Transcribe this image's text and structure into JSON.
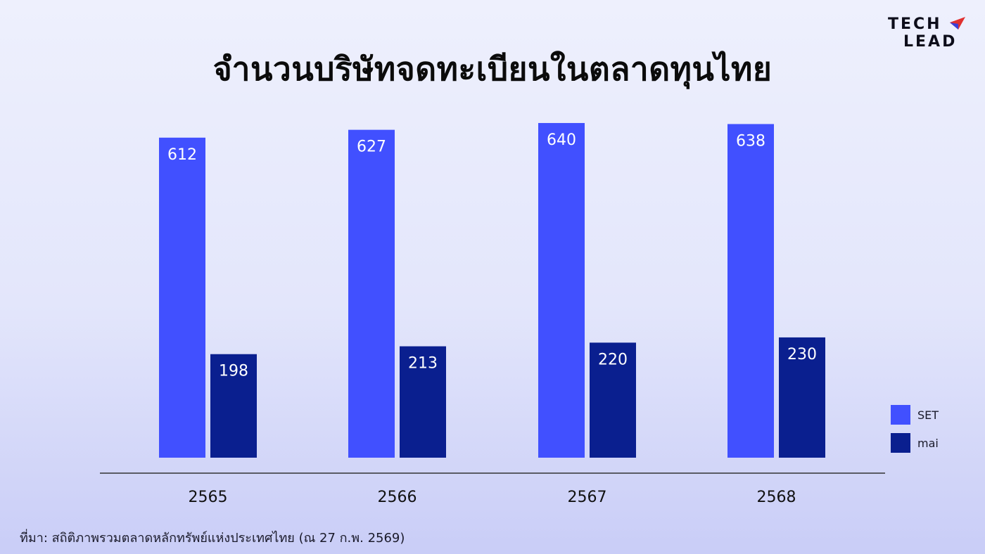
{
  "title": "จำนวนบริษัทจดทะเบียนในตลาดทุนไทย",
  "logo": {
    "line1": "TECH",
    "line2": "LEAD"
  },
  "source": "ที่มา: สถิติภาพรวมตลาดหลักทรัพย์แห่งประเทศไทย (ณ 27 ก.พ. 2569)",
  "colors": {
    "SET": "#4150ff",
    "mai": "#0a1f8f",
    "axis": "#333333"
  },
  "chart_data": {
    "type": "bar",
    "title": "จำนวนบริษัทจดทะเบียนในตลาดทุนไทย",
    "categories": [
      "2565",
      "2566",
      "2567",
      "2568"
    ],
    "series": [
      {
        "name": "SET",
        "values": [
          612,
          627,
          640,
          638
        ]
      },
      {
        "name": "mai",
        "values": [
          198,
          213,
          220,
          230
        ]
      }
    ],
    "ylim": [
      0,
      650
    ],
    "grid": false,
    "legend": "right"
  }
}
